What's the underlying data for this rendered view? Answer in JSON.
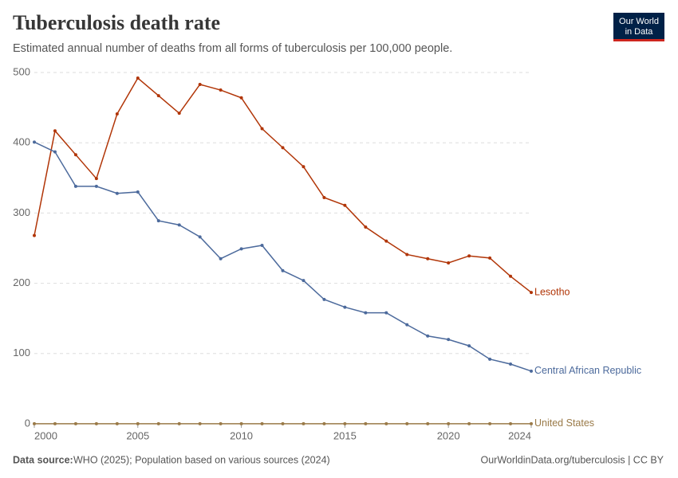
{
  "chart_data": {
    "type": "line",
    "title": "Tuberculosis death rate",
    "subtitle": "Estimated annual number of deaths from all forms of tuberculosis per 100,000 people.",
    "logo": [
      "Our World",
      "in Data"
    ],
    "source_label": "Data source:",
    "source": "WHO (2025); Population based on various sources (2024)",
    "url": "OurWorldinData.org/tuberculosis | CC BY",
    "x": [
      2000,
      2001,
      2002,
      2003,
      2004,
      2005,
      2006,
      2007,
      2008,
      2009,
      2010,
      2011,
      2012,
      2013,
      2014,
      2015,
      2016,
      2017,
      2018,
      2019,
      2020,
      2021,
      2022,
      2023,
      2024
    ],
    "xlim": [
      2000,
      2024
    ],
    "xticks": [
      2000,
      2005,
      2010,
      2015,
      2020,
      2024
    ],
    "ylim": [
      0,
      500
    ],
    "yticks": [
      0,
      100,
      200,
      300,
      400,
      500
    ],
    "grid": true,
    "series": [
      {
        "name": "Lesotho",
        "color": "#b13507",
        "values": [
          268,
          417,
          383,
          349,
          441,
          492,
          467,
          442,
          483,
          475,
          464,
          420,
          393,
          366,
          322,
          311,
          280,
          260,
          241,
          235,
          229,
          239,
          236,
          210,
          187
        ]
      },
      {
        "name": "Central African Republic",
        "color": "#4c6a9c",
        "values": [
          401,
          387,
          338,
          338,
          328,
          330,
          289,
          283,
          266,
          235,
          249,
          254,
          218,
          204,
          177,
          166,
          158,
          158,
          141,
          125,
          120,
          111,
          92,
          85,
          75
        ]
      },
      {
        "name": "United States",
        "color": "#9a7a48",
        "values": [
          0.2,
          0.2,
          0.2,
          0.2,
          0.2,
          0.2,
          0.2,
          0.2,
          0.2,
          0.2,
          0.2,
          0.2,
          0.2,
          0.2,
          0.2,
          0.2,
          0.2,
          0.2,
          0.2,
          0.2,
          0.2,
          0.2,
          0.2,
          0.2,
          0.2
        ]
      }
    ]
  }
}
